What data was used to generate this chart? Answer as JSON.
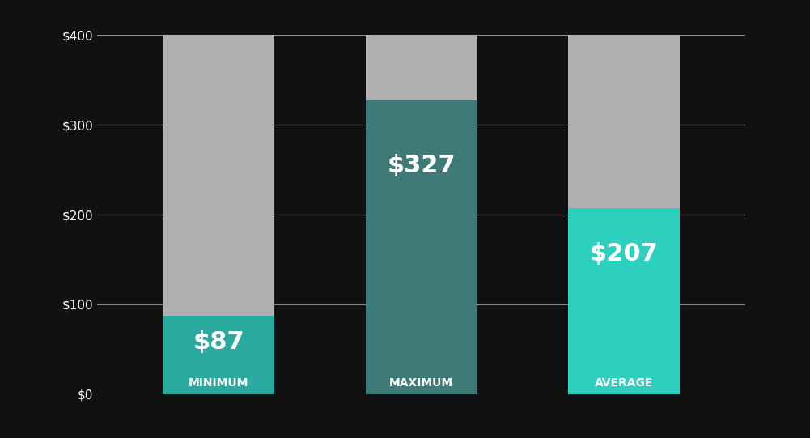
{
  "categories": [
    "MINIMUM",
    "MAXIMUM",
    "AVERAGE"
  ],
  "values": [
    87,
    327,
    207
  ],
  "bar_max": 400,
  "bar_colors": [
    "#2aaa9e",
    "#3d7a78",
    "#2dcfbe"
  ],
  "bg_bar_color": "#b0b0b0",
  "background_color": "#111111",
  "plot_bg_color": "#111111",
  "value_labels": [
    "$87",
    "$327",
    "$207"
  ],
  "ylim": [
    0,
    400
  ],
  "yticks": [
    0,
    100,
    200,
    300,
    400
  ],
  "ytick_labels": [
    "$0",
    "$100",
    "$200",
    "$300",
    "$400"
  ],
  "bar_width": 0.55,
  "value_fontsize": 22,
  "cat_fontsize": 10,
  "grid_color": "#888888",
  "text_color": "#ffffff"
}
